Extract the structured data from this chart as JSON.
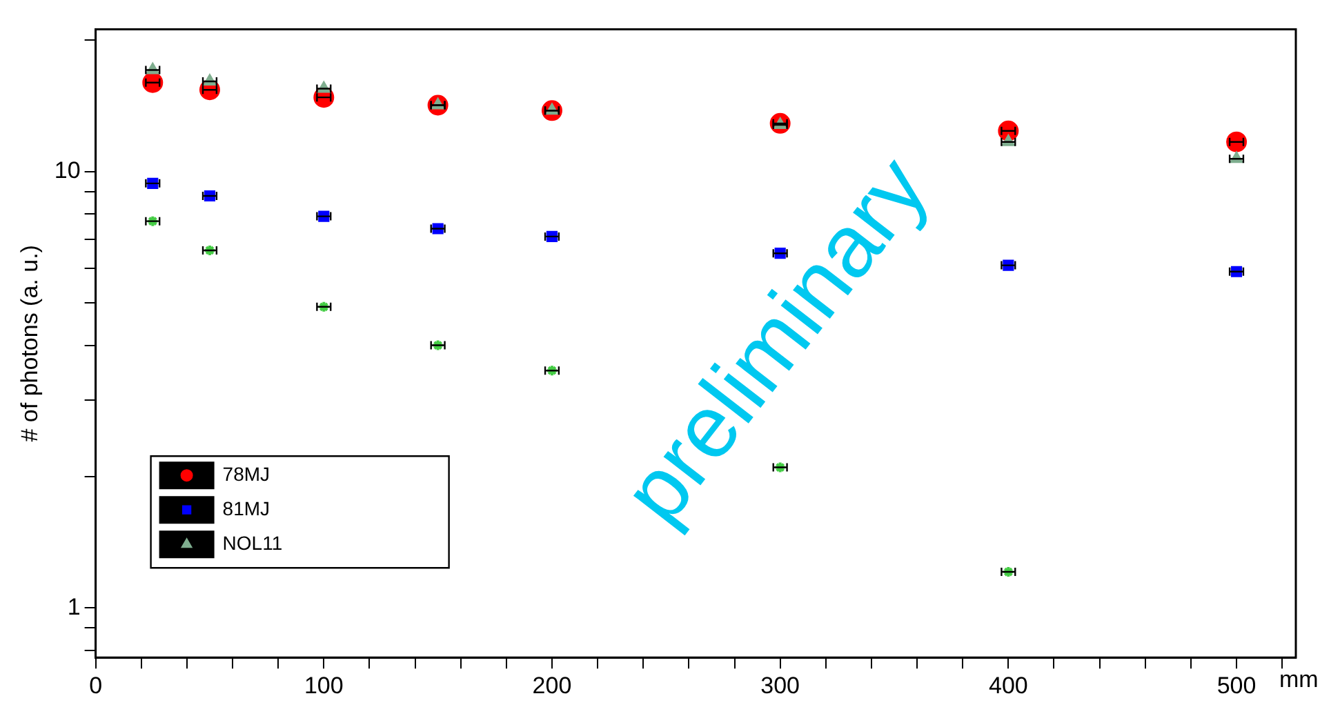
{
  "chart_data": {
    "type": "scatter",
    "xlabel": "mm",
    "ylabel": "# of photons (a. u.)",
    "log": "y",
    "grid": false,
    "legend": "bottom left",
    "xlim": [
      0,
      526
    ],
    "ylim": [
      0.77,
      21.2
    ],
    "xticks": [
      0,
      {
        "value": 20,
        "label": null
      },
      {
        "value": 40,
        "label": null
      },
      {
        "value": 60,
        "label": null
      },
      {
        "value": 80,
        "label": null
      },
      100,
      {
        "value": 120,
        "label": null
      },
      {
        "value": 140,
        "label": null
      },
      {
        "value": 160,
        "label": null
      },
      {
        "value": 180,
        "label": null
      },
      200,
      {
        "value": 220,
        "label": null
      },
      {
        "value": 240,
        "label": null
      },
      {
        "value": 260,
        "label": null
      },
      {
        "value": 280,
        "label": null
      },
      300,
      {
        "value": 320,
        "label": null
      },
      {
        "value": 340,
        "label": null
      },
      {
        "value": 360,
        "label": null
      },
      {
        "value": 380,
        "label": null
      },
      400,
      {
        "value": 420,
        "label": null
      },
      {
        "value": 440,
        "label": null
      },
      {
        "value": 460,
        "label": null
      },
      {
        "value": 480,
        "label": null
      },
      500,
      {
        "value": 520,
        "label": null
      }
    ],
    "yticks": [
      {
        "value": 0.8,
        "label": null
      },
      {
        "value": 0.9,
        "label": null
      },
      1,
      {
        "value": 2,
        "label": null
      },
      {
        "value": 3,
        "label": null
      },
      {
        "value": 4,
        "label": null
      },
      {
        "value": 5,
        "label": null
      },
      {
        "value": 6,
        "label": null
      },
      {
        "value": 7,
        "label": null
      },
      {
        "value": 8,
        "label": null
      },
      {
        "value": 9,
        "label": null
      },
      10,
      {
        "value": 20,
        "label": null
      }
    ],
    "x": [
      25,
      50,
      100,
      150,
      200,
      300,
      400,
      500
    ],
    "series": [
      {
        "name": "78MJ",
        "color": "#ff0000",
        "marker": "circle",
        "values": [
          16.0,
          15.4,
          14.8,
          14.2,
          13.8,
          12.9,
          12.4,
          11.7
        ],
        "xerrors": [
          3,
          3,
          3,
          3,
          3,
          3,
          3,
          3
        ]
      },
      {
        "name": "81MJ",
        "color": "#0000ff",
        "marker": "square",
        "values": [
          9.4,
          8.8,
          7.9,
          7.4,
          7.1,
          6.5,
          6.1,
          5.9
        ],
        "xerrors": [
          3,
          3,
          3,
          3,
          3,
          3,
          3,
          3
        ]
      },
      {
        "name": "NOL11",
        "color": "#7fae8f",
        "marker": "triangle",
        "values": [
          17.1,
          16.1,
          15.5,
          14.2,
          13.8,
          12.8,
          11.7,
          10.7
        ],
        "xerrors": [
          3,
          3,
          3,
          3,
          3,
          3,
          3,
          3
        ]
      },
      {
        "color": "#44cc44",
        "x": [
          25,
          50,
          100,
          150,
          200,
          300,
          400
        ],
        "values": [
          7.7,
          6.6,
          4.9,
          4.0,
          3.5,
          2.1,
          1.21
        ],
        "xerrors": [
          3,
          3,
          3,
          3,
          3,
          3,
          3
        ]
      }
    ],
    "annotations": [
      "preliminary"
    ]
  }
}
